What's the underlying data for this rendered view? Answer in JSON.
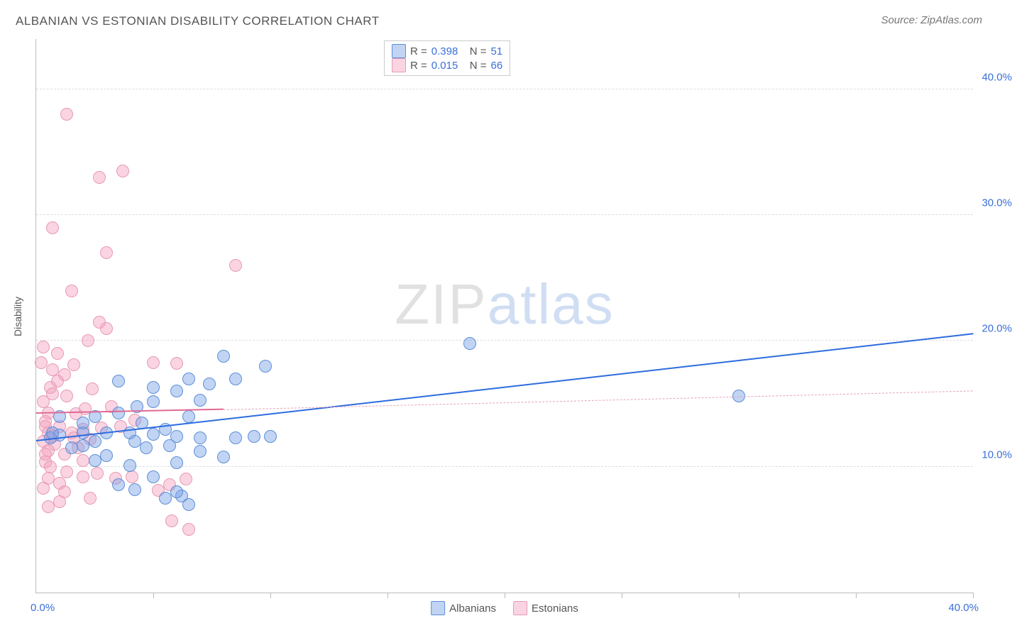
{
  "title": "ALBANIAN VS ESTONIAN DISABILITY CORRELATION CHART",
  "source": "Source: ZipAtlas.com",
  "y_axis_label": "Disability",
  "watermark": {
    "part1": "ZIP",
    "part2": "atlas"
  },
  "xlim": [
    0,
    40
  ],
  "ylim": [
    0,
    44
  ],
  "x_ticks_minor": [
    5,
    10,
    15,
    20,
    25,
    30,
    35,
    40
  ],
  "x_tick_labels": [
    {
      "v": 0,
      "label": "0.0%"
    },
    {
      "v": 40,
      "label": "40.0%"
    }
  ],
  "y_tick_labels": [
    {
      "v": 10,
      "label": "10.0%"
    },
    {
      "v": 20,
      "label": "20.0%"
    },
    {
      "v": 30,
      "label": "30.0%"
    },
    {
      "v": 40,
      "label": "40.0%"
    }
  ],
  "gridlines_y": [
    10,
    20,
    30,
    40
  ],
  "grid_color": "#dddddd",
  "series": [
    {
      "name": "Albanians",
      "fill": "rgba(120,160,230,0.45)",
      "stroke": "#5b8fd6",
      "marker_r": 9,
      "trend": {
        "x1": 0,
        "y1": 12,
        "x2": 40,
        "y2": 20.5,
        "color": "#2d6cdf",
        "width": 2.5,
        "dash": "solid"
      },
      "R": "0.398",
      "N": "51",
      "points": [
        [
          18.5,
          19.8
        ],
        [
          30,
          15.6
        ],
        [
          8,
          18.8
        ],
        [
          9.8,
          18
        ],
        [
          8.5,
          17
        ],
        [
          6.5,
          17
        ],
        [
          5,
          16.3
        ],
        [
          6,
          16
        ],
        [
          7.4,
          16.6
        ],
        [
          5,
          15.2
        ],
        [
          7,
          15.3
        ],
        [
          6.5,
          14
        ],
        [
          4.3,
          14.8
        ],
        [
          3.5,
          14.3
        ],
        [
          3.5,
          16.8
        ],
        [
          2.5,
          14
        ],
        [
          4.5,
          13.5
        ],
        [
          5.5,
          13
        ],
        [
          9.3,
          12.4
        ],
        [
          10,
          12.4
        ],
        [
          8.5,
          12.3
        ],
        [
          7,
          12.3
        ],
        [
          6,
          12.4
        ],
        [
          5,
          12.6
        ],
        [
          4,
          12.7
        ],
        [
          3,
          12.7
        ],
        [
          2,
          12.7
        ],
        [
          1,
          12.5
        ],
        [
          0.6,
          12.3
        ],
        [
          0.7,
          12.7
        ],
        [
          2.5,
          12
        ],
        [
          4.2,
          12
        ],
        [
          4.7,
          11.5
        ],
        [
          5.7,
          11.7
        ],
        [
          7,
          11.2
        ],
        [
          3,
          10.9
        ],
        [
          2,
          11.7
        ],
        [
          6,
          10.3
        ],
        [
          8,
          10.8
        ],
        [
          4,
          10.1
        ],
        [
          2.5,
          10.5
        ],
        [
          1.5,
          11.5
        ],
        [
          5,
          9.2
        ],
        [
          6.2,
          7.7
        ],
        [
          6.5,
          7
        ],
        [
          5.5,
          7.5
        ],
        [
          6,
          8
        ],
        [
          4.2,
          8.2
        ],
        [
          3.5,
          8.6
        ],
        [
          2,
          13.5
        ],
        [
          1,
          14
        ]
      ]
    },
    {
      "name": "Estonians",
      "fill": "rgba(245,160,190,0.45)",
      "stroke": "#e79ab2",
      "marker_r": 9,
      "trend_solid": {
        "x1": 0,
        "y1": 14.2,
        "x2": 8,
        "y2": 14.5,
        "color": "#e06a94",
        "width": 2,
        "dash": "solid"
      },
      "trend": {
        "x1": 8,
        "y1": 14.5,
        "x2": 40,
        "y2": 16,
        "color": "#e8a3ba",
        "width": 1.5,
        "dash": "dashed"
      },
      "R": "0.015",
      "N": "66",
      "points": [
        [
          1.3,
          38
        ],
        [
          3.7,
          33.5
        ],
        [
          2.7,
          33
        ],
        [
          0.7,
          29
        ],
        [
          3,
          27
        ],
        [
          8.5,
          26
        ],
        [
          1.5,
          24
        ],
        [
          2.7,
          21.5
        ],
        [
          3,
          21
        ],
        [
          0.3,
          19.5
        ],
        [
          1.6,
          18.1
        ],
        [
          5,
          18.3
        ],
        [
          6,
          18.2
        ],
        [
          0.7,
          17.7
        ],
        [
          1.2,
          17.3
        ],
        [
          0.6,
          16.3
        ],
        [
          2.4,
          16.2
        ],
        [
          1.3,
          15.6
        ],
        [
          0.5,
          14.3
        ],
        [
          1.7,
          14.2
        ],
        [
          2.1,
          14.6
        ],
        [
          3.2,
          14.8
        ],
        [
          0.4,
          13.6
        ],
        [
          0.4,
          13.2
        ],
        [
          1,
          13.2
        ],
        [
          2,
          13
        ],
        [
          2.8,
          13.1
        ],
        [
          1.5,
          12.7
        ],
        [
          0.5,
          12.7
        ],
        [
          0.7,
          12.4
        ],
        [
          1.6,
          12.3
        ],
        [
          2.3,
          12.2
        ],
        [
          0.3,
          12
        ],
        [
          0.8,
          11.8
        ],
        [
          1.8,
          11.5
        ],
        [
          0.5,
          11.3
        ],
        [
          1.2,
          11
        ],
        [
          2,
          10.5
        ],
        [
          0.4,
          10.4
        ],
        [
          0.6,
          10
        ],
        [
          1.3,
          9.6
        ],
        [
          2,
          9.2
        ],
        [
          2.6,
          9.5
        ],
        [
          0.5,
          9.1
        ],
        [
          1,
          8.7
        ],
        [
          3.4,
          9.1
        ],
        [
          4.1,
          9.2
        ],
        [
          0.3,
          8.3
        ],
        [
          1.2,
          8
        ],
        [
          2.3,
          7.5
        ],
        [
          5.2,
          8.1
        ],
        [
          5.7,
          8.6
        ],
        [
          6.4,
          9
        ],
        [
          1,
          7.2
        ],
        [
          0.5,
          6.8
        ],
        [
          0.3,
          15.2
        ],
        [
          0.7,
          15.8
        ],
        [
          3.6,
          13.2
        ],
        [
          4.2,
          13.7
        ],
        [
          0.9,
          16.8
        ],
        [
          0.2,
          18.3
        ],
        [
          0.9,
          19
        ],
        [
          2.2,
          20
        ],
        [
          0.4,
          11
        ],
        [
          5.8,
          5.7
        ],
        [
          6.5,
          5
        ]
      ]
    }
  ],
  "legend": {
    "rows": [
      {
        "swatch_fill": "rgba(120,160,230,0.45)",
        "swatch_stroke": "#5b8fd6",
        "r_lbl": "R =",
        "r": "0.398",
        "n_lbl": "N =",
        "n": "51"
      },
      {
        "swatch_fill": "rgba(245,160,190,0.45)",
        "swatch_stroke": "#e79ab2",
        "r_lbl": "R =",
        "r": "0.015",
        "n_lbl": "N =",
        "n": "66"
      }
    ]
  },
  "bottom_legend": [
    {
      "swatch_fill": "rgba(120,160,230,0.45)",
      "swatch_stroke": "#5b8fd6",
      "label": "Albanians"
    },
    {
      "swatch_fill": "rgba(245,160,190,0.45)",
      "swatch_stroke": "#e79ab2",
      "label": "Estonians"
    }
  ]
}
